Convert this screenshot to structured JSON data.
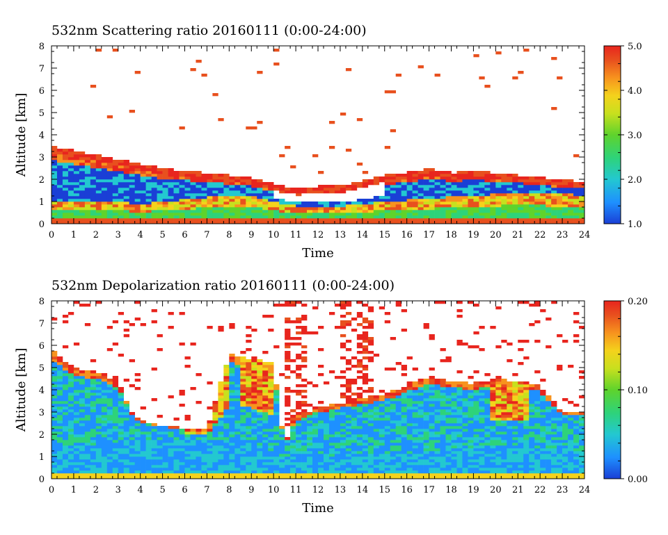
{
  "chart_data": [
    {
      "type": "heatmap",
      "title": "532nm Scattering ratio  20160111 (0:00-24:00)",
      "xlabel": "Time",
      "ylabel": "Altitude [km]",
      "xlim": [
        0,
        24
      ],
      "ylim": [
        0,
        8
      ],
      "x_ticks": [
        "0",
        "1",
        "2",
        "3",
        "4",
        "5",
        "6",
        "7",
        "8",
        "9",
        "10",
        "11",
        "12",
        "13",
        "14",
        "15",
        "16",
        "17",
        "18",
        "19",
        "20",
        "21",
        "22",
        "23",
        "24"
      ],
      "y_ticks": [
        "0",
        "1",
        "2",
        "3",
        "4",
        "5",
        "6",
        "7",
        "8"
      ],
      "colorbar": {
        "range": [
          1.0,
          5.0
        ],
        "ticks": [
          "1.0",
          "2.0",
          "3.0",
          "4.0",
          "5.0"
        ]
      },
      "colormap": [
        "#1a3fd6",
        "#1e90ff",
        "#23c8d0",
        "#2ed37a",
        "#5fd32c",
        "#c8e01e",
        "#f4d21c",
        "#f7931e",
        "#e8501e",
        "#e8251e"
      ],
      "cloud_base_km": [
        [
          0,
          3.2
        ],
        [
          1,
          3.0
        ],
        [
          2,
          2.8
        ],
        [
          3,
          2.6
        ],
        [
          4,
          2.4
        ],
        [
          5,
          2.2
        ],
        [
          6,
          2.1
        ],
        [
          7,
          2.0
        ],
        [
          8,
          1.9
        ],
        [
          9,
          1.8
        ],
        [
          10,
          1.5
        ],
        [
          11,
          1.3
        ],
        [
          12,
          1.4
        ],
        [
          13,
          1.4
        ],
        [
          14,
          1.6
        ],
        [
          15,
          1.9
        ],
        [
          16,
          2.0
        ],
        [
          17,
          2.2
        ],
        [
          18,
          2.0
        ],
        [
          19,
          2.1
        ],
        [
          20,
          2.0
        ],
        [
          21,
          1.9
        ],
        [
          22,
          1.8
        ],
        [
          23,
          1.7
        ],
        [
          24,
          1.6
        ]
      ],
      "boundary_layer_top_km": [
        [
          0,
          1.0
        ],
        [
          3,
          1.0
        ],
        [
          4,
          0.9
        ],
        [
          7,
          1.2
        ],
        [
          9,
          1.3
        ],
        [
          10,
          1.0
        ],
        [
          11,
          0.8
        ],
        [
          13,
          0.8
        ],
        [
          15,
          1.0
        ],
        [
          18,
          1.2
        ],
        [
          21,
          1.4
        ],
        [
          24,
          1.3
        ]
      ]
    },
    {
      "type": "heatmap",
      "title": "532nm Depolarization ratio  20160111 (0:00-24:00)",
      "xlabel": "Time",
      "ylabel": "Altitude [km]",
      "xlim": [
        0,
        24
      ],
      "ylim": [
        0,
        8
      ],
      "x_ticks": [
        "0",
        "1",
        "2",
        "3",
        "4",
        "5",
        "6",
        "7",
        "8",
        "9",
        "10",
        "11",
        "12",
        "13",
        "14",
        "15",
        "16",
        "17",
        "18",
        "19",
        "20",
        "21",
        "22",
        "23",
        "24"
      ],
      "y_ticks": [
        "0",
        "1",
        "2",
        "3",
        "4",
        "5",
        "6",
        "7",
        "8"
      ],
      "colorbar": {
        "range": [
          0.0,
          0.2
        ],
        "ticks": [
          "0.00",
          "0.10",
          "0.20"
        ]
      },
      "colormap": [
        "#1a3fd6",
        "#1e90ff",
        "#23c8d0",
        "#2ed37a",
        "#5fd32c",
        "#c8e01e",
        "#f4d21c",
        "#f7931e",
        "#e8501e",
        "#e8251e"
      ],
      "layer_top_km": [
        [
          0,
          5.8
        ],
        [
          1,
          5.0
        ],
        [
          2,
          4.8
        ],
        [
          3,
          4.4
        ],
        [
          3.5,
          3.2
        ],
        [
          4,
          2.6
        ],
        [
          5,
          2.4
        ],
        [
          6,
          2.3
        ],
        [
          7,
          2.2
        ],
        [
          8,
          5.6
        ],
        [
          9,
          5.4
        ],
        [
          10,
          5.2
        ],
        [
          10.5,
          1.5
        ],
        [
          11,
          2.8
        ],
        [
          12,
          3.2
        ],
        [
          13,
          3.4
        ],
        [
          14,
          3.6
        ],
        [
          15,
          3.8
        ],
        [
          16,
          4.2
        ],
        [
          17,
          4.6
        ],
        [
          18,
          4.4
        ],
        [
          19,
          4.3
        ],
        [
          20,
          4.5
        ],
        [
          21,
          4.4
        ],
        [
          22,
          4.2
        ],
        [
          23,
          3.0
        ],
        [
          24,
          3.0
        ]
      ],
      "aerosol_layer_km": [
        [
          0,
          1.5
        ],
        [
          3,
          1.6
        ],
        [
          6,
          1.8
        ],
        [
          9,
          1.7
        ],
        [
          10.5,
          1.0
        ],
        [
          12,
          1.0
        ],
        [
          15,
          1.1
        ],
        [
          18,
          1.3
        ],
        [
          21,
          1.4
        ],
        [
          24,
          1.3
        ]
      ]
    }
  ]
}
